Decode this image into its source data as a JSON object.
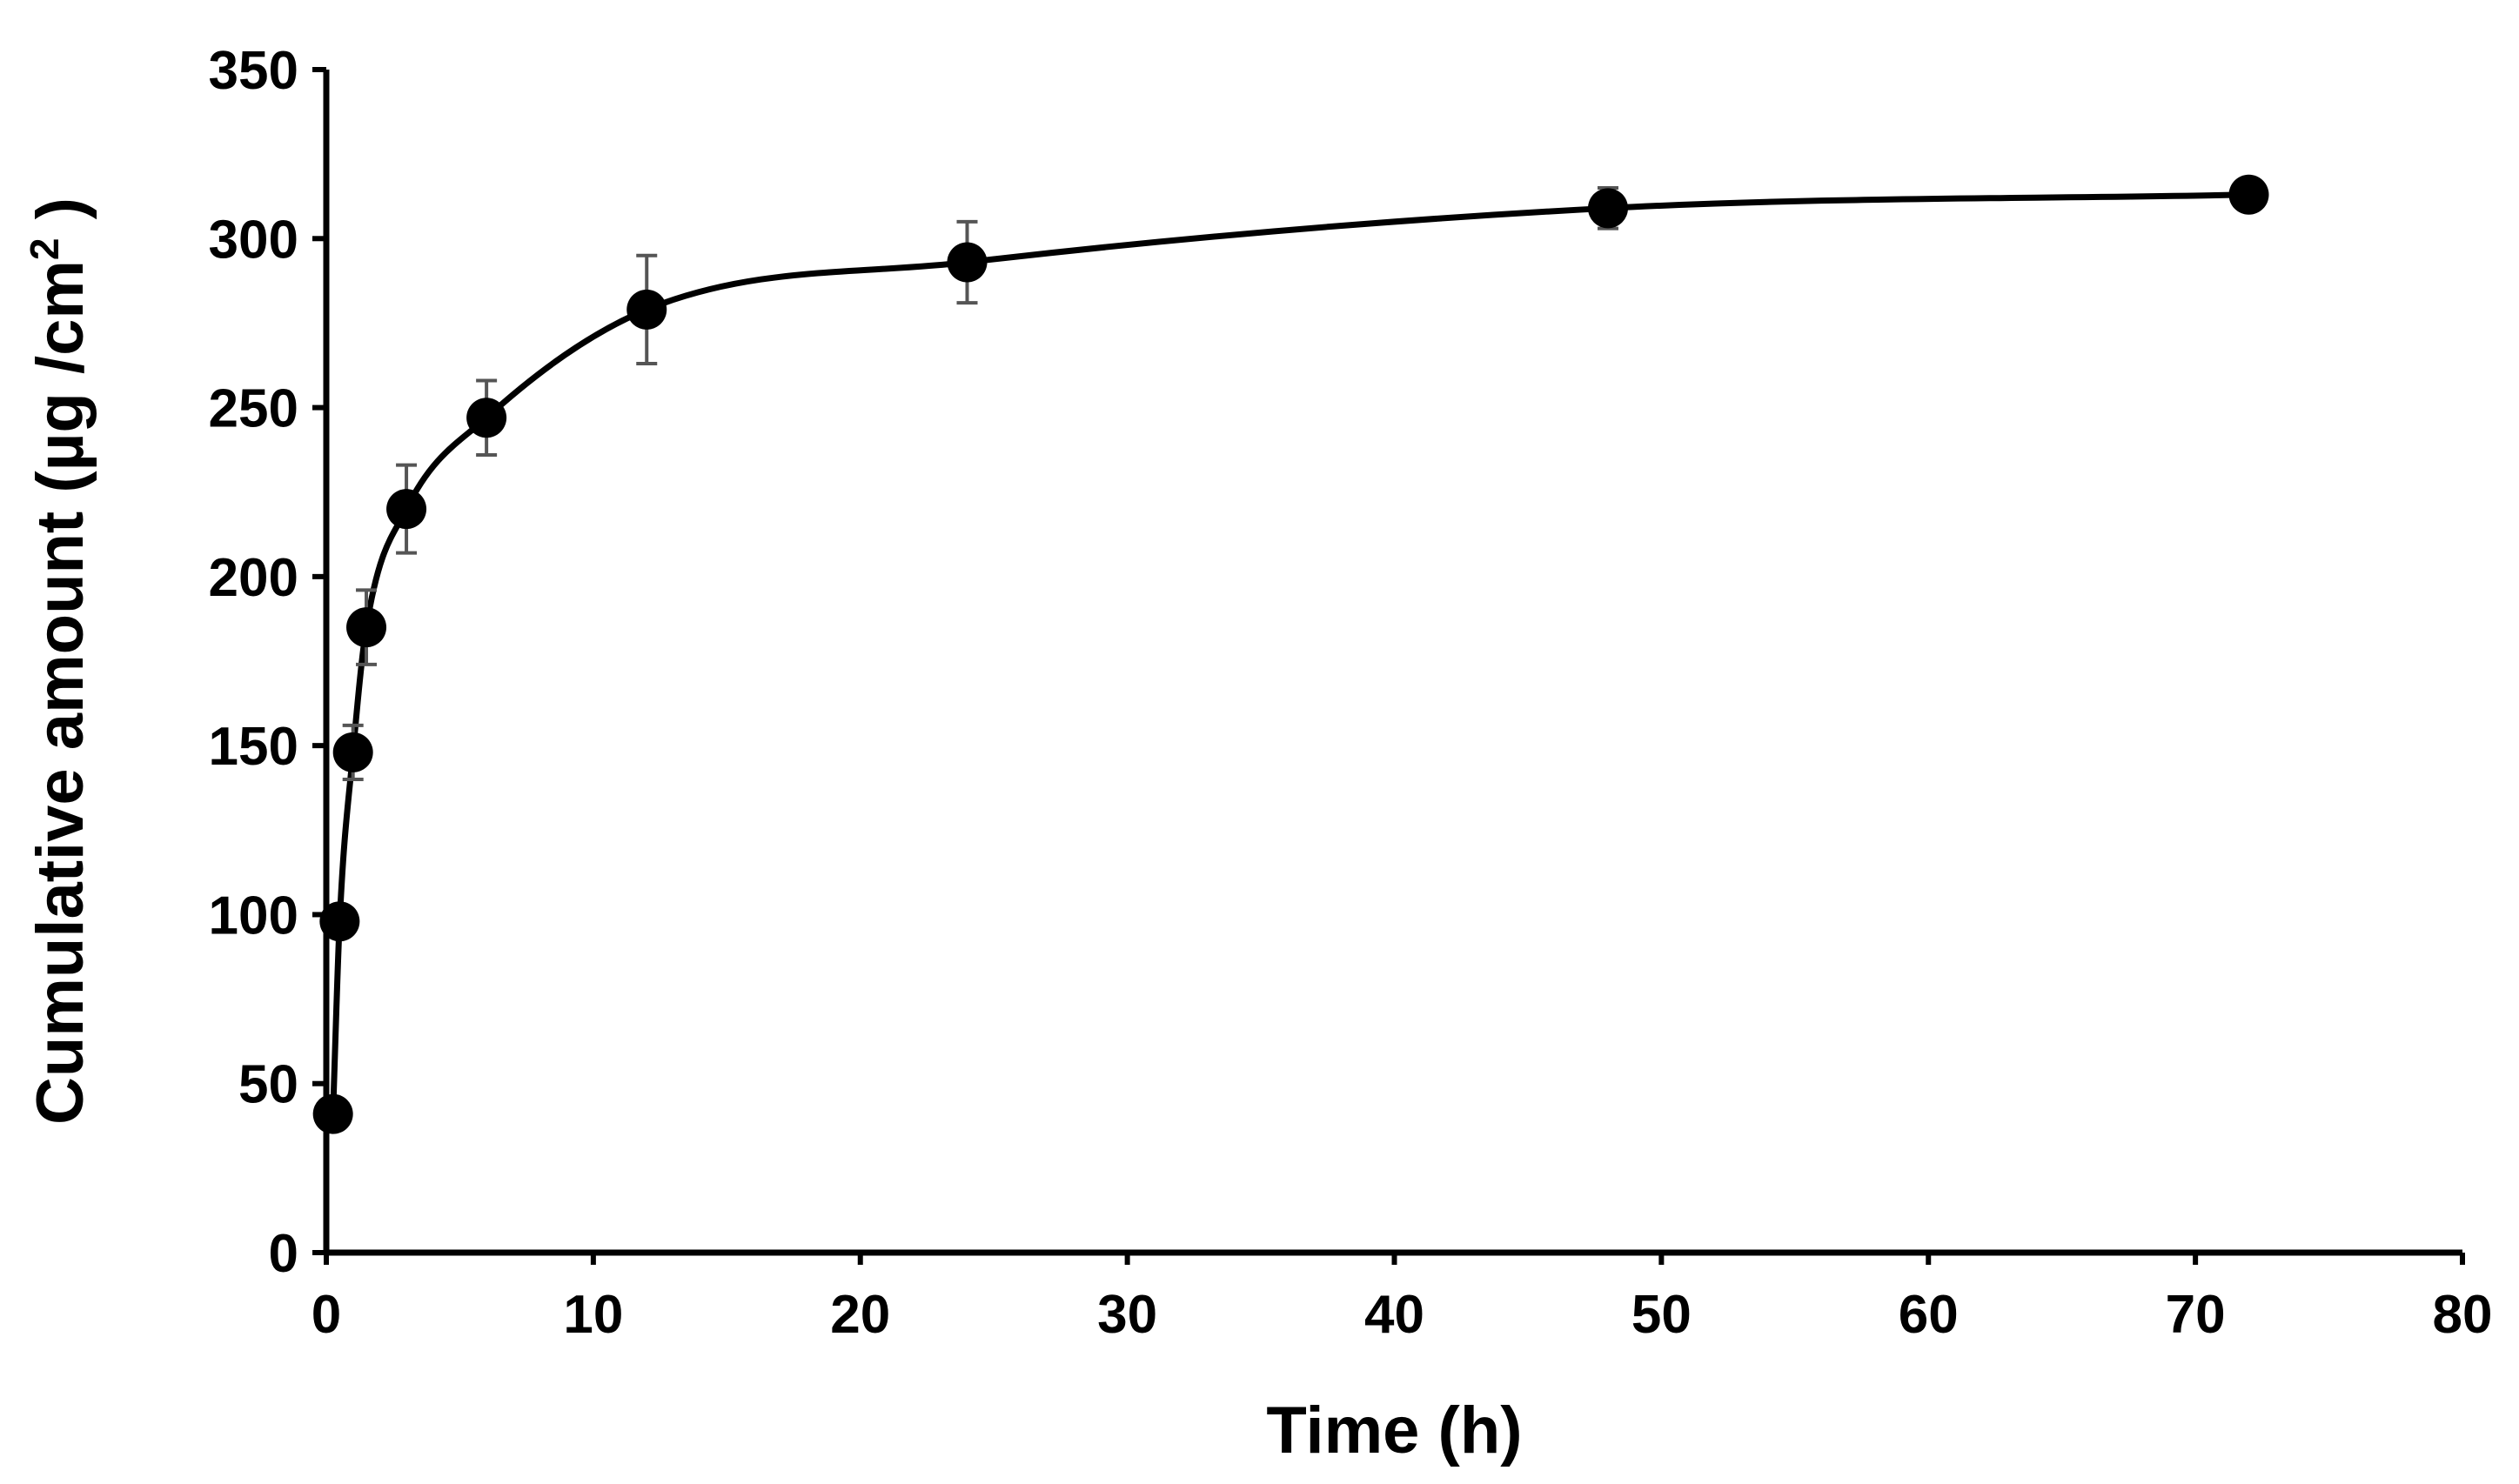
{
  "chart_data": {
    "type": "line",
    "title": "",
    "xlabel": "Time (h)",
    "ylabel": {
      "prefix": "Cumulative amount (µg /cm",
      "superscript": "2",
      "suffix": " )"
    },
    "xlim": [
      0,
      80
    ],
    "ylim": [
      0,
      350
    ],
    "xticks": [
      0,
      10,
      20,
      30,
      40,
      50,
      60,
      70,
      80
    ],
    "yticks": [
      0,
      50,
      100,
      150,
      200,
      250,
      300,
      350
    ],
    "grid": false,
    "legend": "none",
    "series": [
      {
        "name": "Cumulative amount",
        "marker": "circle",
        "line": "smooth",
        "color": "#000000",
        "errorbar_color": "#555555",
        "x": [
          0.25,
          0.5,
          1,
          1.5,
          3,
          6,
          12,
          24,
          48,
          72
        ],
        "y": [
          41,
          98,
          148,
          185,
          220,
          247,
          279,
          293,
          309,
          313
        ],
        "error": [
          2,
          3,
          8,
          11,
          13,
          11,
          16,
          12,
          6,
          4
        ]
      }
    ]
  }
}
